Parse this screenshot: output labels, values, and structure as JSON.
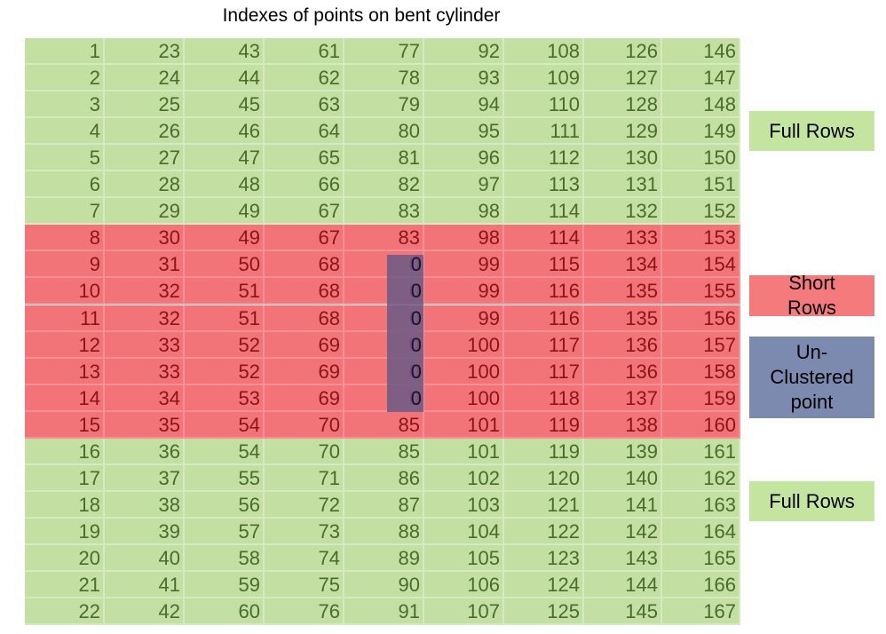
{
  "title": "Indexes of points on bent cylinder",
  "rows": [
    [
      "1",
      "23",
      "43",
      "61",
      "77",
      "92",
      "108",
      "126",
      "146"
    ],
    [
      "2",
      "24",
      "44",
      "62",
      "78",
      "93",
      "109",
      "127",
      "147"
    ],
    [
      "3",
      "25",
      "45",
      "63",
      "79",
      "94",
      "110",
      "128",
      "148"
    ],
    [
      "4",
      "26",
      "46",
      "64",
      "80",
      "95",
      "111",
      "129",
      "149"
    ],
    [
      "5",
      "27",
      "47",
      "65",
      "81",
      "96",
      "112",
      "130",
      "150"
    ],
    [
      "6",
      "28",
      "48",
      "66",
      "82",
      "97",
      "113",
      "131",
      "151"
    ],
    [
      "7",
      "29",
      "49",
      "67",
      "83",
      "98",
      "114",
      "132",
      "152"
    ],
    [
      "8",
      "30",
      "49",
      "67",
      "83",
      "98",
      "114",
      "133",
      "153"
    ],
    [
      "9",
      "31",
      "50",
      "68",
      "0",
      "99",
      "115",
      "134",
      "154"
    ],
    [
      "10",
      "32",
      "51",
      "68",
      "0",
      "99",
      "116",
      "135",
      "155"
    ],
    [
      "11",
      "32",
      "51",
      "68",
      "0",
      "99",
      "116",
      "135",
      "156"
    ],
    [
      "12",
      "33",
      "52",
      "69",
      "0",
      "100",
      "117",
      "136",
      "157"
    ],
    [
      "13",
      "33",
      "52",
      "69",
      "0",
      "100",
      "117",
      "136",
      "158"
    ],
    [
      "14",
      "34",
      "53",
      "69",
      "0",
      "100",
      "118",
      "137",
      "159"
    ],
    [
      "15",
      "35",
      "54",
      "70",
      "85",
      "101",
      "119",
      "138",
      "160"
    ],
    [
      "16",
      "36",
      "54",
      "70",
      "85",
      "101",
      "119",
      "139",
      "161"
    ],
    [
      "17",
      "37",
      "55",
      "71",
      "86",
      "102",
      "120",
      "140",
      "162"
    ],
    [
      "18",
      "38",
      "56",
      "72",
      "87",
      "103",
      "121",
      "141",
      "163"
    ],
    [
      "19",
      "39",
      "57",
      "73",
      "88",
      "104",
      "122",
      "142",
      "164"
    ],
    [
      "20",
      "40",
      "58",
      "74",
      "89",
      "105",
      "123",
      "143",
      "165"
    ],
    [
      "21",
      "41",
      "59",
      "75",
      "90",
      "106",
      "124",
      "144",
      "166"
    ],
    [
      "22",
      "42",
      "60",
      "76",
      "91",
      "107",
      "125",
      "145",
      "167"
    ]
  ],
  "row_status": [
    "full",
    "full",
    "full",
    "full",
    "full",
    "full",
    "full",
    "short",
    "short",
    "short",
    "short",
    "short",
    "short",
    "short",
    "short",
    "full",
    "full",
    "full",
    "full",
    "full",
    "full",
    "full"
  ],
  "unclustered": {
    "column": 4,
    "rows": [
      8,
      9,
      10,
      11,
      12,
      13
    ]
  },
  "legend": {
    "full_top": "Full Rows",
    "short_line1": "Short",
    "short_line2": "Rows",
    "unclustered_line1": "Un-",
    "unclustered_line2": "Clustered",
    "unclustered_line3": "point",
    "full_bottom": "Full Rows"
  },
  "colors": {
    "full": "#c3dfa1",
    "short": "#f27378",
    "unclustered": "#6b5a86"
  }
}
